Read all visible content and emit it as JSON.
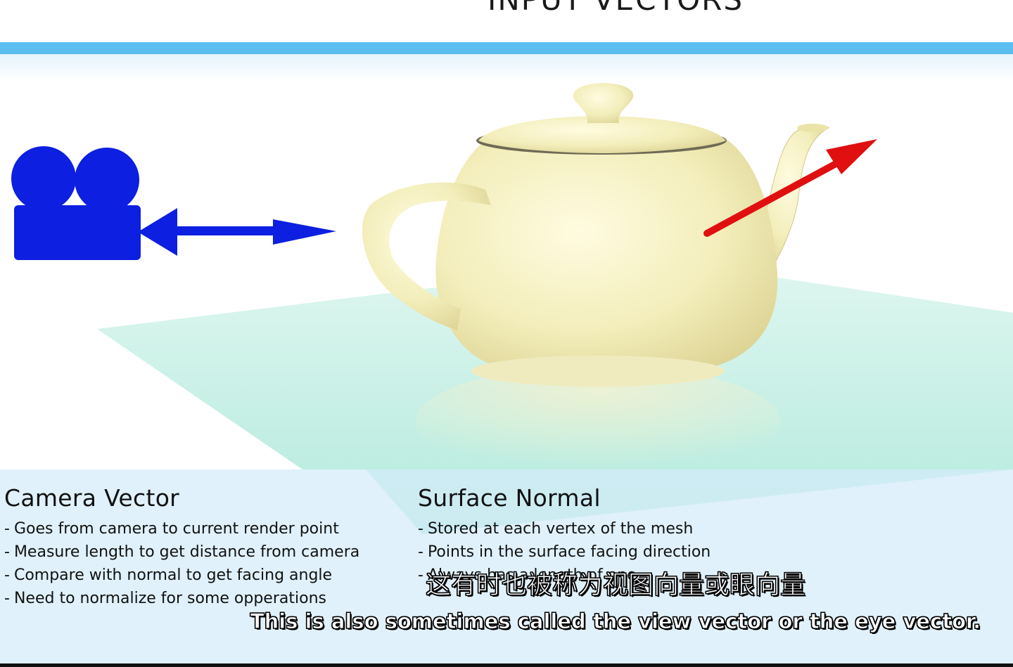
{
  "header": {
    "title": "INPUT VECTORS"
  },
  "colors": {
    "header_bar": "#5bbdf0",
    "camera_blue": "#0d1fe0",
    "normal_red": "#e01010",
    "teapot": "#f3eebb",
    "ground": "#b8ecde",
    "panel": "#d4ecfa"
  },
  "scene": {
    "camera_icon": "video-camera-icon",
    "camera_arrow_icon": "right-arrow-icon",
    "teapot_icon": "teapot-icon",
    "normal_arrow_icon": "up-right-arrow-icon"
  },
  "left": {
    "heading": "Camera Vector",
    "items": [
      "Goes from camera to current render point",
      "Measure length to get distance from camera",
      "Compare with normal to get facing angle",
      "Need to normalize for some opperations"
    ]
  },
  "right": {
    "heading": "Surface Normal",
    "items": [
      "Stored at each vertex of the mesh",
      "Points in the surface facing direction",
      "Always has a length of one"
    ]
  },
  "bullet": "-",
  "subtitles": {
    "zh": "这有时也被称为视图向量或眼向量",
    "en": "This is also sometimes called the view vector or the eye vector."
  }
}
